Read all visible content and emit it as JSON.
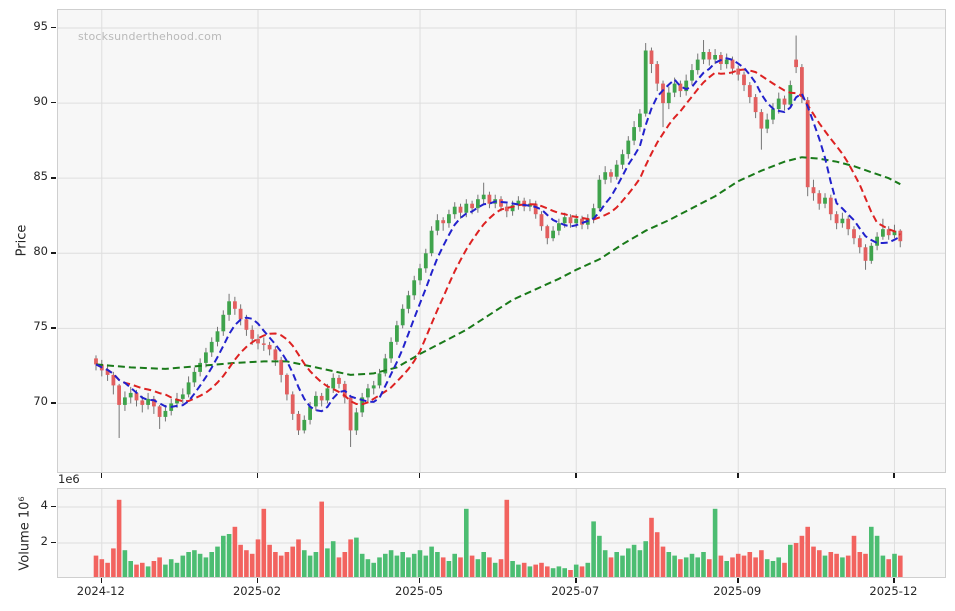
{
  "chart_data": {
    "type": "candlestick",
    "watermark": "stocksunderthehood.com",
    "x_tick_labels": [
      "2024-12",
      "2025-02",
      "2025-05",
      "2025-07",
      "2025-09",
      "2025-12"
    ],
    "x_tick_indices": [
      1,
      28,
      56,
      83,
      111,
      138
    ],
    "price": {
      "label": "Price",
      "ticks": [
        70,
        75,
        80,
        85,
        90,
        95
      ],
      "range": [
        65.3,
        96.2
      ]
    },
    "volume": {
      "label": "Volume  10⁶",
      "offset_text": "1e6",
      "ticks": [
        2,
        4
      ],
      "range": [
        0,
        5.0
      ],
      "unit": 1000000
    },
    "colors": {
      "up": "#3fa34c",
      "down": "#e25f5f",
      "wick": "#757575",
      "vol_up": "#4cbd72",
      "vol_down": "#f2635f",
      "ma_fast": "#2222cc",
      "ma_mid": "#dd2222",
      "ma_slow": "#1a7a1a",
      "grid": "#dedede",
      "panel_bg": "#f7f7f7"
    },
    "overlays": {
      "ma_fast": {
        "type": "sma",
        "window": 6,
        "color_key": "ma_fast"
      },
      "ma_mid": {
        "type": "sma",
        "window": 13,
        "color_key": "ma_mid"
      },
      "ma_slow_points": [
        [
          0,
          72.6
        ],
        [
          6,
          72.4
        ],
        [
          12,
          72.3
        ],
        [
          18,
          72.5
        ],
        [
          24,
          72.7
        ],
        [
          29,
          72.8
        ],
        [
          33,
          72.8
        ],
        [
          38,
          72.4
        ],
        [
          44,
          71.9
        ],
        [
          48,
          72.0
        ],
        [
          52,
          72.4
        ],
        [
          56,
          73.3
        ],
        [
          60,
          74.1
        ],
        [
          64,
          74.9
        ],
        [
          68,
          75.9
        ],
        [
          72,
          76.9
        ],
        [
          76,
          77.6
        ],
        [
          80,
          78.3
        ],
        [
          83,
          78.9
        ],
        [
          87,
          79.6
        ],
        [
          91,
          80.6
        ],
        [
          95,
          81.5
        ],
        [
          99,
          82.2
        ],
        [
          103,
          83.0
        ],
        [
          107,
          83.8
        ],
        [
          111,
          84.8
        ],
        [
          115,
          85.5
        ],
        [
          119,
          86.1
        ],
        [
          122,
          86.4
        ],
        [
          125,
          86.3
        ],
        [
          128,
          86.1
        ],
        [
          131,
          85.8
        ],
        [
          134,
          85.4
        ],
        [
          137,
          85.0
        ],
        [
          139,
          84.6
        ]
      ]
    },
    "candles": [
      [
        73.0,
        73.2,
        72.2,
        72.6,
        1.3
      ],
      [
        72.6,
        72.9,
        71.8,
        72.2,
        1.1
      ],
      [
        72.2,
        72.6,
        71.5,
        71.9,
        0.9
      ],
      [
        71.9,
        72.1,
        70.6,
        71.2,
        1.7
      ],
      [
        71.2,
        71.3,
        67.7,
        69.9,
        4.4
      ],
      [
        69.9,
        70.8,
        69.5,
        70.4,
        1.6
      ],
      [
        70.4,
        71.1,
        70.0,
        70.7,
        1.0
      ],
      [
        70.7,
        70.9,
        69.8,
        70.2,
        0.8
      ],
      [
        70.2,
        70.5,
        69.4,
        69.9,
        0.9
      ],
      [
        69.9,
        70.7,
        69.6,
        70.3,
        0.7
      ],
      [
        70.3,
        70.5,
        69.3,
        69.8,
        1.0
      ],
      [
        69.8,
        69.9,
        68.3,
        69.1,
        1.2
      ],
      [
        69.1,
        69.9,
        68.8,
        69.5,
        0.8
      ],
      [
        69.5,
        70.3,
        69.2,
        70.0,
        1.1
      ],
      [
        70.0,
        70.7,
        69.7,
        70.3,
        0.9
      ],
      [
        70.3,
        71.0,
        70.0,
        70.6,
        1.3
      ],
      [
        70.6,
        71.8,
        70.4,
        71.4,
        1.5
      ],
      [
        71.4,
        72.4,
        71.1,
        72.1,
        1.6
      ],
      [
        72.1,
        73.0,
        71.8,
        72.7,
        1.4
      ],
      [
        72.7,
        73.7,
        72.4,
        73.4,
        1.2
      ],
      [
        73.4,
        74.4,
        73.1,
        74.1,
        1.5
      ],
      [
        74.1,
        75.1,
        73.8,
        74.8,
        1.8
      ],
      [
        74.8,
        76.2,
        74.5,
        75.9,
        2.4
      ],
      [
        75.9,
        77.3,
        75.5,
        76.8,
        2.5
      ],
      [
        76.8,
        77.1,
        75.9,
        76.3,
        2.9
      ],
      [
        76.3,
        76.6,
        75.2,
        75.6,
        1.9
      ],
      [
        75.6,
        75.9,
        74.5,
        74.9,
        1.6
      ],
      [
        74.9,
        75.2,
        73.9,
        74.3,
        1.4
      ],
      [
        74.3,
        74.6,
        73.6,
        74.0,
        2.2
      ],
      [
        74.0,
        74.4,
        73.5,
        73.9,
        3.9
      ],
      [
        73.9,
        74.1,
        73.2,
        73.6,
        1.9
      ],
      [
        73.6,
        73.8,
        72.5,
        72.9,
        1.5
      ],
      [
        72.9,
        73.1,
        71.4,
        71.9,
        1.3
      ],
      [
        71.9,
        72.0,
        70.2,
        70.6,
        1.5
      ],
      [
        70.6,
        70.8,
        68.9,
        69.3,
        1.8
      ],
      [
        69.3,
        69.5,
        67.9,
        68.2,
        2.2
      ],
      [
        68.2,
        69.2,
        68.0,
        68.9,
        1.6
      ],
      [
        68.9,
        70.1,
        68.6,
        69.8,
        1.3
      ],
      [
        69.8,
        70.8,
        69.5,
        70.5,
        1.5
      ],
      [
        70.5,
        70.7,
        69.8,
        70.2,
        4.3
      ],
      [
        70.2,
        71.3,
        70.0,
        71.0,
        1.7
      ],
      [
        71.0,
        72.0,
        70.7,
        71.7,
        2.1
      ],
      [
        71.7,
        71.9,
        71.0,
        71.3,
        1.2
      ],
      [
        71.3,
        71.5,
        70.0,
        70.4,
        1.5
      ],
      [
        70.4,
        70.5,
        67.1,
        68.2,
        2.2
      ],
      [
        68.2,
        69.7,
        67.9,
        69.4,
        2.3
      ],
      [
        69.4,
        70.7,
        69.1,
        70.4,
        1.4
      ],
      [
        70.4,
        71.3,
        70.1,
        71.0,
        1.1
      ],
      [
        71.0,
        71.5,
        70.6,
        71.2,
        0.9
      ],
      [
        71.2,
        72.3,
        71.0,
        72.0,
        1.2
      ],
      [
        72.0,
        73.3,
        71.8,
        73.0,
        1.4
      ],
      [
        73.0,
        74.4,
        72.7,
        74.1,
        1.6
      ],
      [
        74.1,
        75.5,
        73.9,
        75.2,
        1.3
      ],
      [
        75.2,
        76.6,
        75.0,
        76.3,
        1.5
      ],
      [
        76.3,
        77.5,
        76.0,
        77.2,
        1.2
      ],
      [
        77.2,
        78.5,
        76.9,
        78.2,
        1.4
      ],
      [
        78.2,
        79.3,
        77.9,
        79.0,
        1.6
      ],
      [
        79.0,
        80.3,
        78.7,
        80.0,
        1.3
      ],
      [
        80.0,
        81.8,
        79.8,
        81.5,
        1.8
      ],
      [
        81.5,
        82.6,
        81.2,
        82.2,
        1.5
      ],
      [
        82.2,
        82.4,
        81.5,
        82.0,
        1.2
      ],
      [
        82.0,
        82.9,
        81.7,
        82.6,
        1.0
      ],
      [
        82.6,
        83.4,
        82.3,
        83.1,
        1.4
      ],
      [
        83.1,
        83.3,
        82.3,
        82.7,
        1.2
      ],
      [
        82.7,
        83.6,
        82.4,
        83.3,
        3.9
      ],
      [
        83.3,
        83.5,
        82.6,
        83.0,
        1.3
      ],
      [
        83.0,
        83.9,
        82.7,
        83.6,
        1.1
      ],
      [
        83.6,
        84.7,
        83.3,
        83.9,
        1.5
      ],
      [
        83.9,
        84.1,
        83.0,
        83.3,
        1.2
      ],
      [
        83.3,
        83.9,
        83.0,
        83.6,
        0.9
      ],
      [
        83.6,
        83.8,
        82.8,
        83.1,
        1.1
      ],
      [
        83.1,
        83.3,
        82.4,
        82.8,
        4.4
      ],
      [
        82.8,
        83.5,
        82.5,
        83.2,
        1.0
      ],
      [
        83.2,
        83.8,
        82.9,
        83.5,
        0.8
      ],
      [
        83.5,
        83.7,
        82.8,
        83.1,
        0.9
      ],
      [
        83.1,
        83.6,
        82.8,
        83.3,
        0.7
      ],
      [
        83.3,
        83.5,
        82.3,
        82.6,
        0.8
      ],
      [
        82.6,
        82.8,
        81.5,
        81.8,
        0.9
      ],
      [
        81.8,
        81.9,
        80.6,
        81.0,
        0.7
      ],
      [
        81.0,
        81.8,
        80.8,
        81.5,
        0.6
      ],
      [
        81.5,
        82.3,
        81.2,
        82.0,
        0.7
      ],
      [
        82.0,
        82.7,
        81.7,
        82.4,
        0.6
      ],
      [
        82.4,
        82.6,
        81.7,
        82.0,
        0.5
      ],
      [
        82.0,
        82.6,
        81.7,
        82.3,
        0.8
      ],
      [
        82.3,
        82.5,
        81.6,
        81.9,
        0.7
      ],
      [
        81.9,
        82.6,
        81.6,
        82.3,
        0.9
      ],
      [
        82.3,
        83.3,
        82.0,
        83.0,
        3.2
      ],
      [
        83.0,
        85.2,
        82.8,
        84.9,
        2.4
      ],
      [
        84.9,
        85.8,
        84.6,
        85.4,
        1.6
      ],
      [
        85.4,
        85.6,
        84.7,
        85.1,
        1.2
      ],
      [
        85.1,
        86.2,
        84.9,
        85.9,
        1.5
      ],
      [
        85.9,
        86.9,
        85.6,
        86.6,
        1.3
      ],
      [
        86.6,
        87.8,
        86.3,
        87.5,
        1.7
      ],
      [
        87.5,
        88.8,
        87.2,
        88.4,
        1.9
      ],
      [
        88.4,
        89.6,
        88.1,
        89.3,
        1.6
      ],
      [
        89.3,
        94.0,
        89.1,
        93.5,
        2.1
      ],
      [
        93.5,
        93.7,
        92.0,
        92.6,
        3.4
      ],
      [
        92.6,
        92.8,
        90.8,
        91.3,
        2.6
      ],
      [
        91.3,
        91.5,
        88.4,
        90.0,
        1.8
      ],
      [
        90.0,
        91.1,
        89.6,
        90.7,
        1.5
      ],
      [
        90.7,
        91.7,
        90.4,
        91.3,
        1.3
      ],
      [
        91.3,
        91.5,
        90.4,
        90.8,
        1.1
      ],
      [
        90.8,
        91.9,
        90.5,
        91.5,
        1.2
      ],
      [
        91.5,
        92.6,
        91.2,
        92.2,
        1.4
      ],
      [
        92.2,
        93.3,
        91.9,
        92.9,
        1.2
      ],
      [
        92.9,
        94.2,
        92.6,
        93.4,
        1.5
      ],
      [
        93.4,
        93.6,
        92.5,
        92.9,
        1.1
      ],
      [
        92.9,
        93.6,
        92.6,
        93.2,
        3.9
      ],
      [
        93.2,
        93.4,
        92.2,
        92.6,
        1.3
      ],
      [
        92.6,
        93.3,
        92.3,
        92.9,
        1.0
      ],
      [
        92.9,
        93.1,
        91.9,
        92.3,
        1.2
      ],
      [
        92.3,
        92.5,
        91.5,
        91.9,
        1.4
      ],
      [
        91.9,
        92.1,
        90.8,
        91.2,
        1.3
      ],
      [
        91.2,
        91.4,
        90.0,
        90.4,
        1.5
      ],
      [
        90.4,
        90.6,
        89.0,
        89.4,
        1.2
      ],
      [
        89.4,
        89.6,
        86.9,
        88.3,
        1.6
      ],
      [
        88.3,
        89.3,
        88.0,
        88.9,
        1.1
      ],
      [
        88.9,
        90.0,
        88.6,
        89.6,
        1.0
      ],
      [
        89.6,
        90.7,
        89.3,
        90.3,
        1.2
      ],
      [
        90.3,
        90.5,
        89.5,
        89.9,
        0.9
      ],
      [
        89.9,
        91.5,
        89.7,
        91.2,
        1.9
      ],
      [
        92.9,
        94.5,
        92.0,
        92.4,
        2.0
      ],
      [
        92.4,
        92.6,
        90.0,
        90.4,
        2.4
      ],
      [
        90.2,
        90.4,
        83.8,
        84.4,
        2.9
      ],
      [
        84.4,
        84.9,
        83.5,
        84.0,
        1.8
      ],
      [
        84.0,
        84.2,
        82.9,
        83.3,
        1.6
      ],
      [
        83.3,
        84.0,
        83.0,
        83.7,
        1.3
      ],
      [
        83.7,
        83.9,
        82.2,
        82.6,
        1.5
      ],
      [
        82.6,
        82.8,
        81.6,
        82.0,
        1.4
      ],
      [
        82.0,
        82.7,
        81.7,
        82.3,
        1.2
      ],
      [
        82.3,
        82.5,
        81.2,
        81.6,
        1.3
      ],
      [
        81.6,
        81.8,
        80.6,
        81.0,
        2.4
      ],
      [
        81.0,
        81.2,
        80.0,
        80.4,
        1.5
      ],
      [
        80.4,
        80.6,
        78.9,
        79.5,
        1.4
      ],
      [
        79.5,
        80.7,
        79.3,
        80.5,
        2.9
      ],
      [
        80.5,
        81.4,
        80.2,
        81.1,
        2.4
      ],
      [
        81.1,
        82.3,
        80.9,
        81.6,
        1.3
      ],
      [
        81.6,
        81.8,
        80.9,
        81.2,
        1.1
      ],
      [
        81.2,
        81.9,
        81.0,
        81.5,
        1.4
      ],
      [
        81.5,
        81.6,
        80.4,
        80.8,
        1.3
      ]
    ]
  }
}
